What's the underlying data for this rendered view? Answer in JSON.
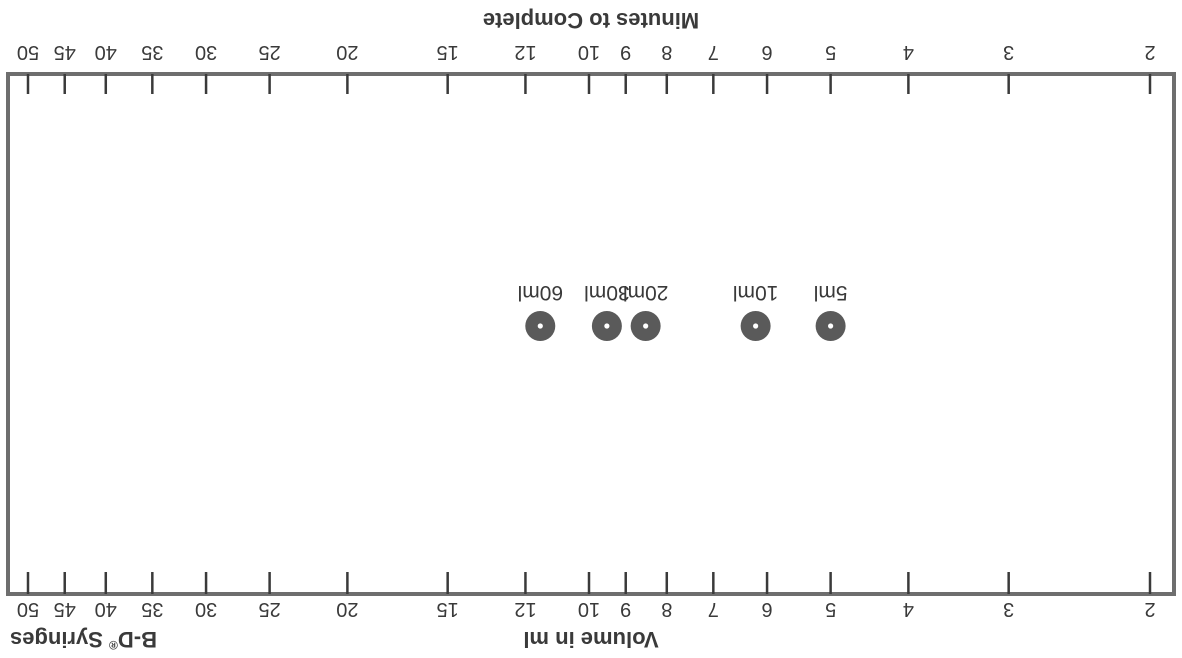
{
  "chart_data": {
    "type": "nomogram",
    "brand": {
      "prefix": "B-D",
      "mark": "®",
      "suffix": " Syringes"
    },
    "volume_scale": {
      "title": "Volume in ml",
      "ticks": [
        2,
        3,
        4,
        5,
        6,
        7,
        8,
        9,
        10,
        12,
        15,
        20,
        25,
        30,
        35,
        40,
        45,
        50
      ]
    },
    "minutes_scale": {
      "title": "Minutes to Complete",
      "ticks": [
        2,
        3,
        4,
        5,
        6,
        7,
        8,
        9,
        10,
        12,
        15,
        20,
        25,
        30,
        35,
        40,
        45,
        50
      ]
    },
    "syringes": [
      {
        "label": "5ml",
        "volume": 5
      },
      {
        "label": "10ml",
        "volume": 6.2
      },
      {
        "label": "20ml",
        "volume": 8.5
      },
      {
        "label": "30ml",
        "volume": 9.5
      },
      {
        "label": "60ml",
        "volume": 11.5
      }
    ],
    "colors": {
      "ink": "#3a3a3a",
      "dot": "#5a5a5a",
      "frame": "#6e6e6e"
    }
  }
}
